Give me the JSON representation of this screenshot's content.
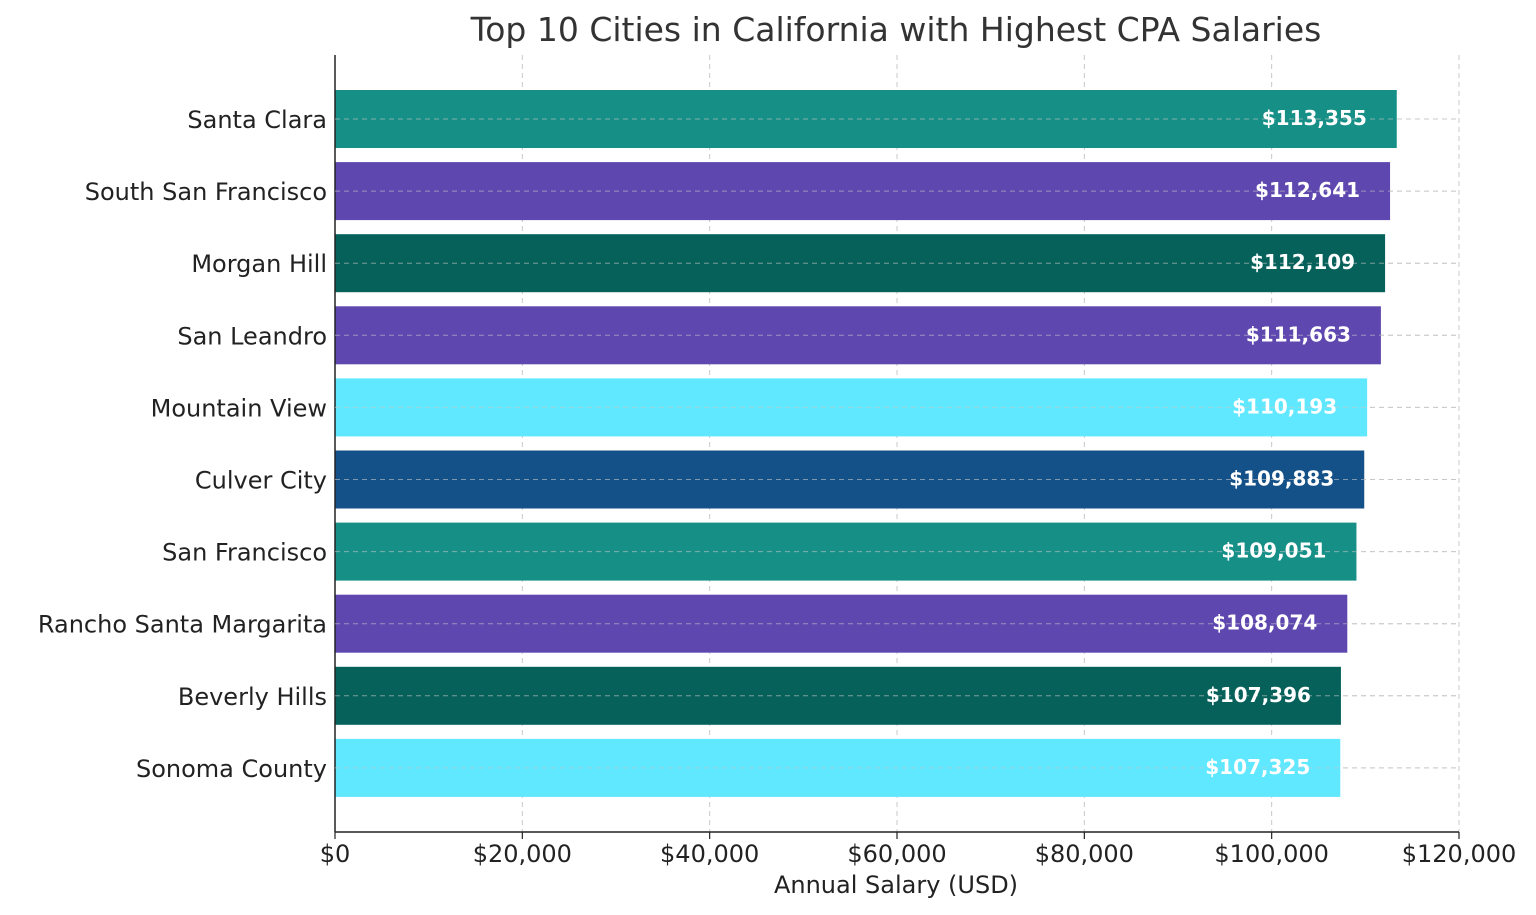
{
  "chart_data": {
    "type": "bar",
    "orientation": "horizontal",
    "title": "Top 10 Cities in California with Highest CPA Salaries",
    "xlabel": "Annual Salary (USD)",
    "ylabel": "",
    "xlim": [
      0,
      120000
    ],
    "x_ticks": [
      0,
      20000,
      40000,
      60000,
      80000,
      100000,
      120000
    ],
    "x_tick_labels": [
      "$0",
      "$20,000",
      "$40,000",
      "$60,000",
      "$80,000",
      "$100,000",
      "$120,000"
    ],
    "grid": true,
    "categories": [
      "Santa Clara",
      "South San Francisco",
      "Morgan Hill",
      "San Leandro",
      "Mountain View",
      "Culver City",
      "San Francisco",
      "Rancho Santa Margarita",
      "Beverly Hills",
      "Sonoma County"
    ],
    "values": [
      113355,
      112641,
      112109,
      111663,
      110193,
      109883,
      109051,
      108074,
      107396,
      107325
    ],
    "value_labels": [
      "$113,355",
      "$112,641",
      "$112,109",
      "$111,663",
      "$110,193",
      "$109,883",
      "$109,051",
      "$108,074",
      "$107,396",
      "$107,325"
    ],
    "colors": [
      "#168f87",
      "#5f47b0",
      "#07615b",
      "#5f47b0",
      "#5fe8ff",
      "#155189",
      "#168f87",
      "#5f47b0",
      "#07615b",
      "#5fe8ff"
    ]
  }
}
